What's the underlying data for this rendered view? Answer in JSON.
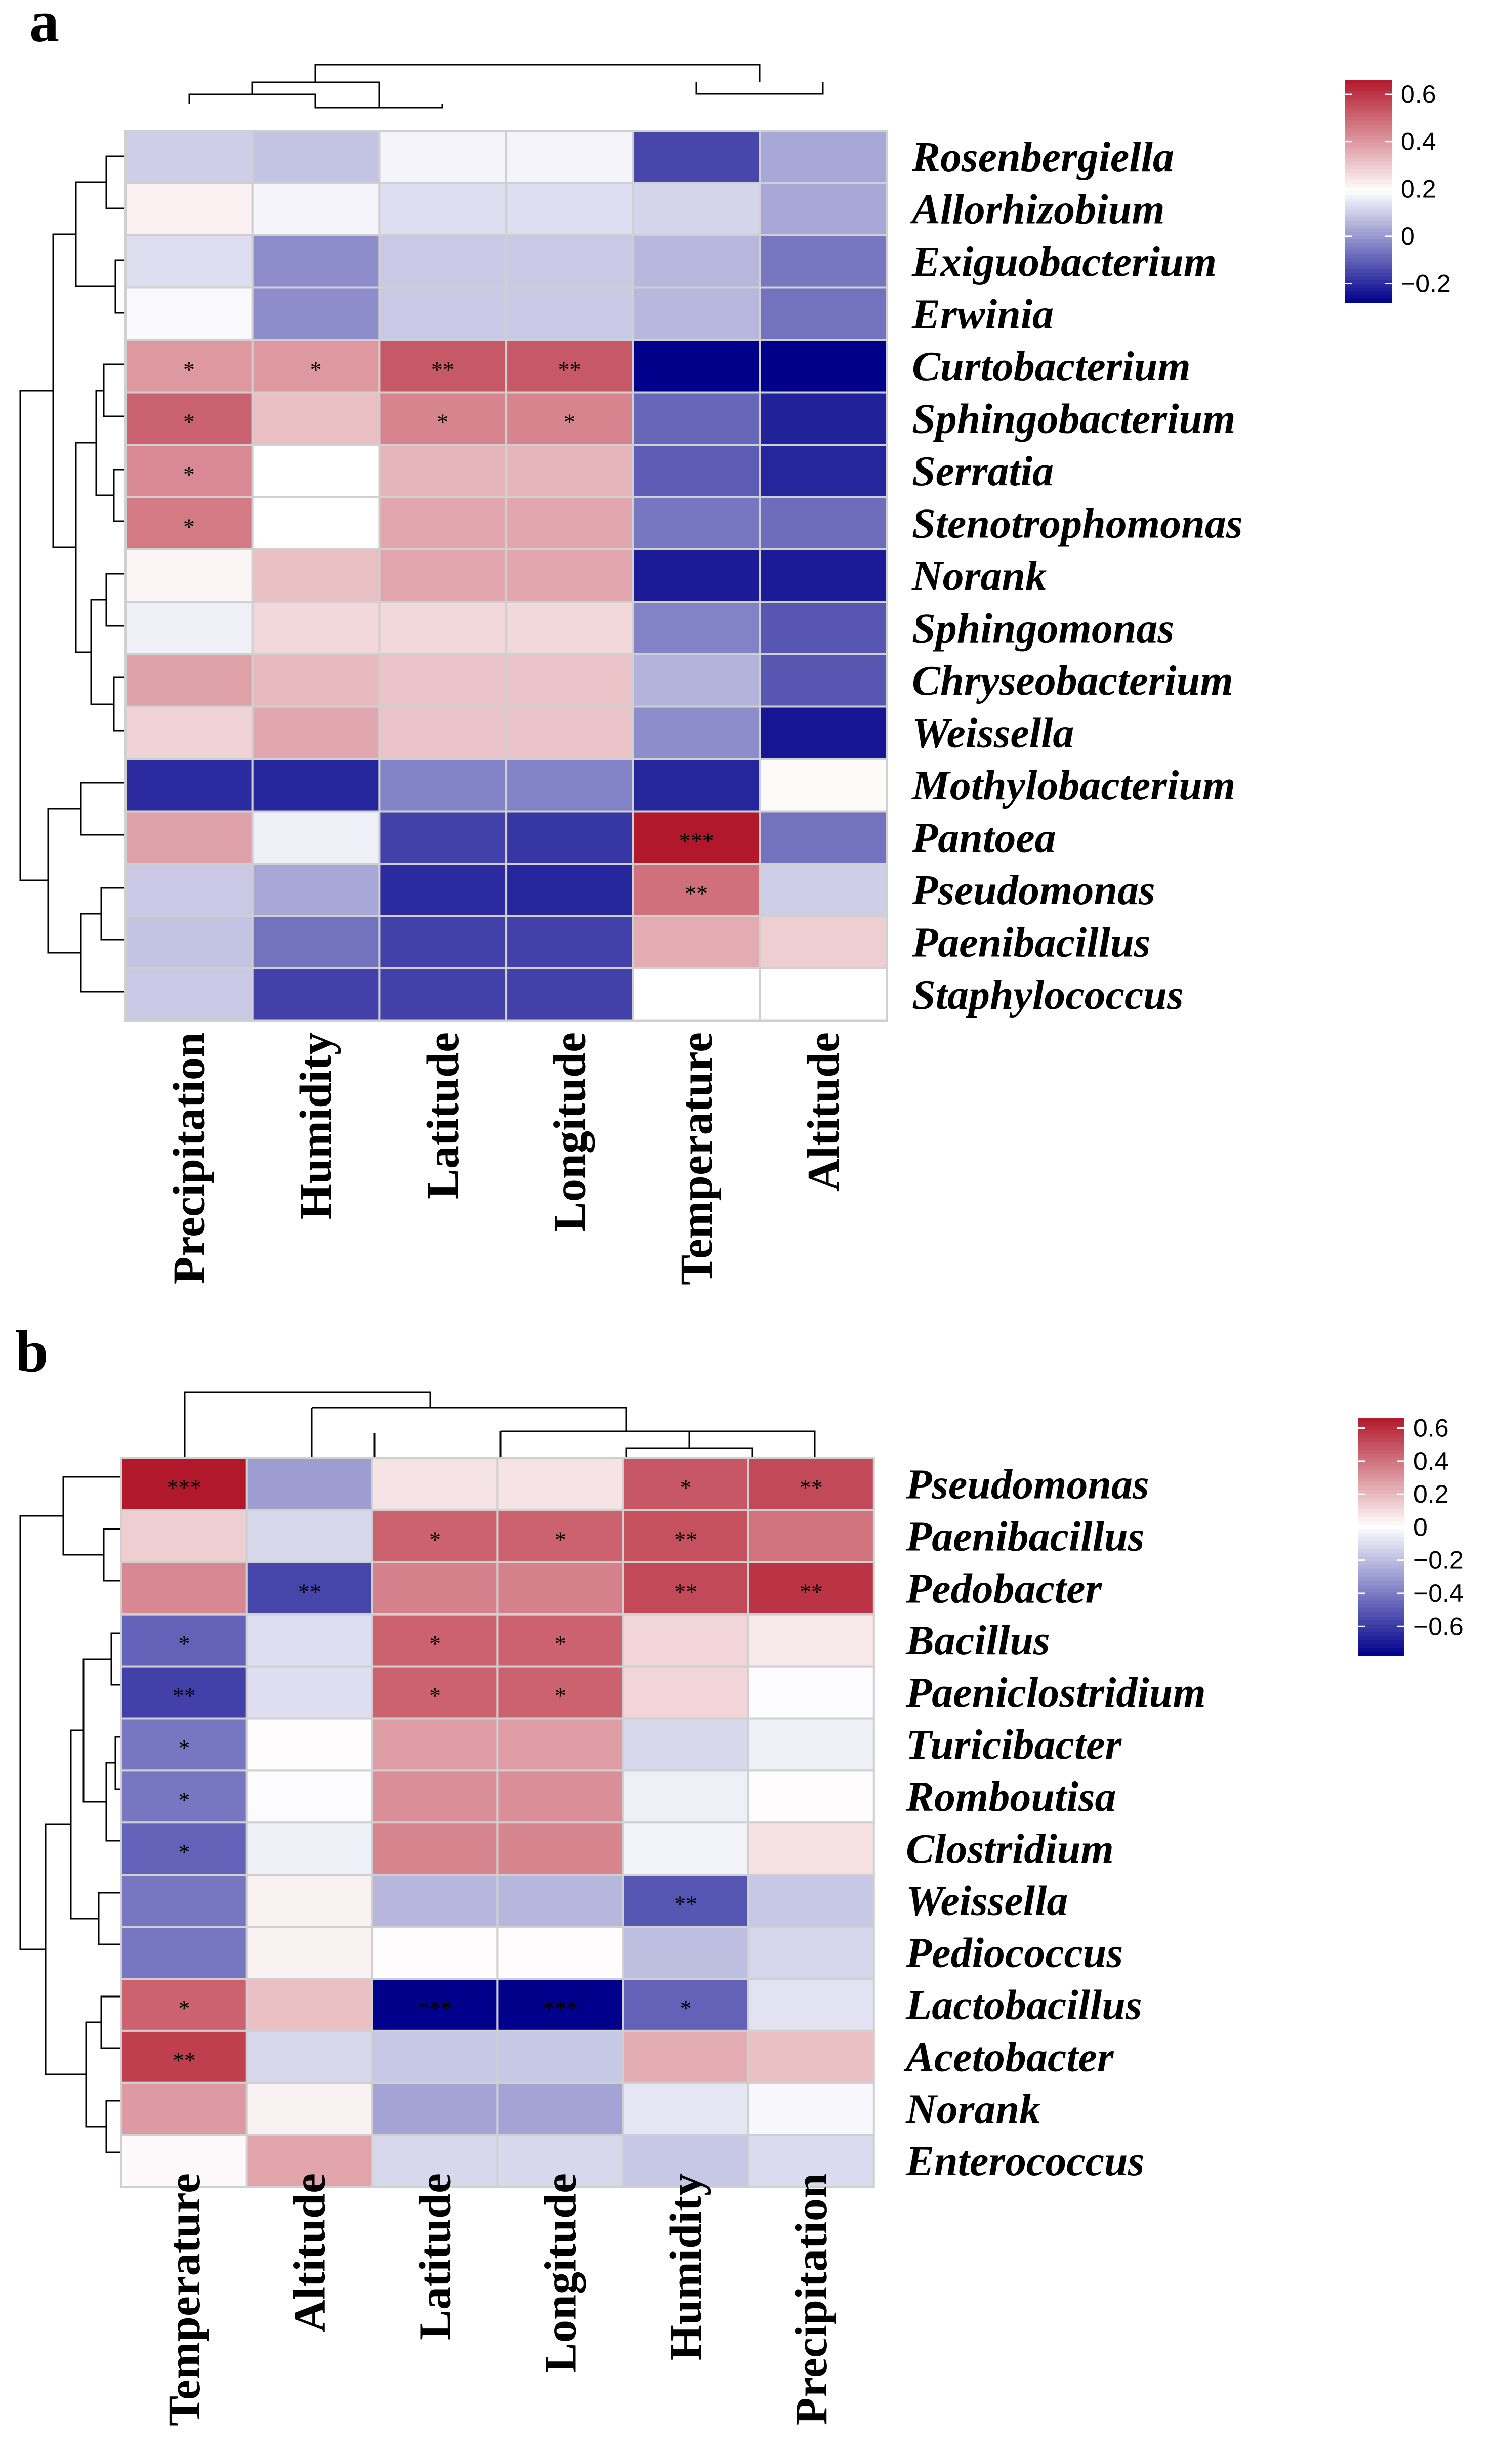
{
  "chart_data": [
    {
      "panel_label": "a",
      "type": "heatmap",
      "title": "",
      "xlabel": "",
      "ylabel": "",
      "columns": [
        "Precipitation",
        "Humidity",
        "Latitude",
        "Longitude",
        "Temperature",
        "Altitude"
      ],
      "rows": [
        "Rosenbergiella",
        "Allorhizobium",
        "Exiguobacterium",
        "Erwinia",
        "Curtobacterium",
        "Sphingobacterium",
        "Serratia",
        "Stenotrophomonas",
        "Norank",
        "Sphingomonas",
        "Chryseobacterium",
        "Weissella",
        "Mothylobacterium",
        "Pantoea",
        "Pseudomonas",
        "Paenibacillus",
        "Staphylococcus"
      ],
      "values": [
        [
          0.1,
          0.08,
          0.17,
          0.17,
          -0.15,
          0.03
        ],
        [
          0.22,
          0.17,
          0.13,
          0.13,
          0.11,
          0.03
        ],
        [
          0.13,
          -0.02,
          0.09,
          0.09,
          0.06,
          -0.06
        ],
        [
          0.18,
          -0.02,
          0.09,
          0.09,
          0.06,
          -0.07
        ],
        [
          0.4,
          0.4,
          0.53,
          0.53,
          -0.28,
          -0.28
        ],
        [
          0.51,
          0.32,
          0.44,
          0.44,
          -0.09,
          -0.22
        ],
        [
          0.43,
          0.19,
          0.34,
          0.34,
          -0.11,
          -0.21
        ],
        [
          0.46,
          0.19,
          0.37,
          0.37,
          -0.06,
          -0.08
        ],
        [
          0.21,
          0.32,
          0.37,
          0.37,
          -0.23,
          -0.23
        ],
        [
          0.16,
          0.27,
          0.27,
          0.27,
          -0.04,
          -0.12
        ],
        [
          0.38,
          0.33,
          0.31,
          0.31,
          0.05,
          -0.12
        ],
        [
          0.28,
          0.37,
          0.31,
          0.31,
          -0.02,
          -0.24
        ],
        [
          -0.2,
          -0.21,
          -0.04,
          -0.04,
          -0.21,
          0.2
        ],
        [
          0.38,
          0.16,
          -0.16,
          -0.18,
          0.66,
          -0.07
        ],
        [
          0.09,
          0.03,
          -0.2,
          -0.21,
          0.48,
          0.1
        ],
        [
          0.08,
          -0.07,
          -0.16,
          -0.16,
          0.36,
          0.29
        ],
        [
          0.09,
          -0.16,
          -0.16,
          -0.16,
          0.19,
          0.19
        ]
      ],
      "significance": [
        [
          "",
          "",
          "",
          "",
          "",
          ""
        ],
        [
          "",
          "",
          "",
          "",
          "",
          ""
        ],
        [
          "",
          "",
          "",
          "",
          "",
          ""
        ],
        [
          "",
          "",
          "",
          "",
          "",
          ""
        ],
        [
          "*",
          "*",
          "**",
          "**",
          "",
          ""
        ],
        [
          "*",
          "",
          "*",
          "*",
          "",
          ""
        ],
        [
          "*",
          "",
          "",
          "",
          "",
          ""
        ],
        [
          "*",
          "",
          "",
          "",
          "",
          ""
        ],
        [
          "",
          "",
          "",
          "",
          "",
          ""
        ],
        [
          "",
          "",
          "",
          "",
          "",
          ""
        ],
        [
          "",
          "",
          "",
          "",
          "",
          ""
        ],
        [
          "",
          "",
          "",
          "",
          "",
          ""
        ],
        [
          "",
          "",
          "",
          "",
          "",
          ""
        ],
        [
          "",
          "",
          "",
          "",
          "***",
          ""
        ],
        [
          "",
          "",
          "",
          "",
          "**",
          ""
        ],
        [
          "",
          "",
          "",
          "",
          "",
          ""
        ],
        [
          "",
          "",
          "",
          "",
          "",
          ""
        ]
      ],
      "color_scale": {
        "stops": [
          [
            -0.28,
            "#00008b"
          ],
          [
            0.19,
            "#ffffff"
          ],
          [
            0.66,
            "#b2182b"
          ]
        ],
        "ticks": [
          "0.6",
          "0.4",
          "0.2",
          "0",
          "−0.2"
        ],
        "tick_values": [
          0.6,
          0.4,
          0.2,
          0.0,
          -0.2
        ],
        "range": [
          -0.28,
          0.66
        ]
      }
    },
    {
      "panel_label": "b",
      "type": "heatmap",
      "title": "",
      "xlabel": "",
      "ylabel": "",
      "columns": [
        "Temperature",
        "Altitude",
        "Latitude",
        "Longitude",
        "Humidity",
        "Precipitation"
      ],
      "rows": [
        "Pseudomonas",
        "Paenibacillus",
        "Pedobacter",
        "Bacillus",
        "Paeniclostridium",
        "Turicibacter",
        "Romboutisa",
        "Clostridium",
        "Weissella",
        "Pediococcus",
        "Lactobacillus",
        "Acetobacter",
        "Norank",
        "Enterococcus"
      ],
      "values": [
        [
          0.66,
          -0.3,
          0.08,
          0.08,
          0.48,
          0.52
        ],
        [
          0.14,
          -0.12,
          0.45,
          0.45,
          0.5,
          0.4
        ],
        [
          0.34,
          -0.57,
          0.36,
          0.36,
          0.52,
          0.58
        ],
        [
          -0.48,
          -0.1,
          0.45,
          0.45,
          0.12,
          0.06
        ],
        [
          -0.58,
          -0.1,
          0.45,
          0.45,
          0.12,
          -0.01
        ],
        [
          -0.42,
          0.01,
          0.28,
          0.28,
          -0.12,
          -0.05
        ],
        [
          -0.42,
          -0.01,
          0.32,
          0.32,
          -0.05,
          0.01
        ],
        [
          -0.48,
          -0.05,
          0.35,
          0.35,
          -0.04,
          0.09
        ],
        [
          -0.42,
          0.04,
          -0.22,
          -0.22,
          -0.52,
          -0.17
        ],
        [
          -0.42,
          0.04,
          0.01,
          0.01,
          -0.2,
          -0.13
        ],
        [
          0.45,
          0.18,
          -0.78,
          -0.78,
          -0.48,
          -0.09
        ],
        [
          0.55,
          -0.12,
          -0.17,
          -0.17,
          0.24,
          0.18
        ],
        [
          0.29,
          0.04,
          -0.28,
          -0.28,
          -0.08,
          -0.02
        ],
        [
          0.02,
          0.26,
          -0.12,
          -0.12,
          -0.17,
          -0.11
        ]
      ],
      "significance": [
        [
          "***",
          "",
          "",
          "",
          "*",
          "**"
        ],
        [
          "",
          "",
          "*",
          "*",
          "**",
          ""
        ],
        [
          "",
          "**",
          "",
          "",
          "**",
          "**"
        ],
        [
          "*",
          "",
          "*",
          "*",
          "",
          ""
        ],
        [
          "**",
          "",
          "*",
          "*",
          "",
          ""
        ],
        [
          "*",
          "",
          "",
          "",
          "",
          ""
        ],
        [
          "*",
          "",
          "",
          "",
          "",
          ""
        ],
        [
          "*",
          "",
          "",
          "",
          "",
          ""
        ],
        [
          "",
          "",
          "",
          "",
          "**",
          ""
        ],
        [
          "",
          "",
          "",
          "",
          "",
          ""
        ],
        [
          "*",
          "",
          "***",
          "***",
          "*",
          ""
        ],
        [
          "**",
          "",
          "",
          "",
          "",
          ""
        ],
        [
          "",
          "",
          "",
          "",
          "",
          ""
        ],
        [
          "",
          "",
          "",
          "",
          "",
          ""
        ]
      ],
      "color_scale": {
        "stops": [
          [
            -0.78,
            "#00008b"
          ],
          [
            0.0,
            "#ffffff"
          ],
          [
            0.66,
            "#b2182b"
          ]
        ],
        "ticks": [
          "0.6",
          "0.4",
          "0.2",
          "0",
          "−0.2",
          "−0.4",
          "−0.6"
        ],
        "tick_values": [
          0.6,
          0.4,
          0.2,
          0.0,
          -0.2,
          -0.4,
          -0.6
        ],
        "range": [
          -0.78,
          0.66
        ]
      }
    }
  ]
}
